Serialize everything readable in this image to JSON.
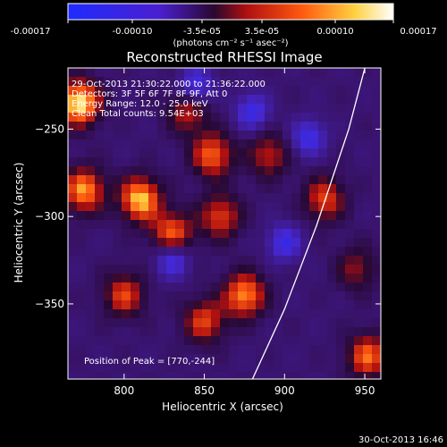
{
  "colorbar": {
    "ticks": [
      "-0.00017",
      "-0.00010",
      "-3.5e-05",
      "3.5e-05",
      "0.00010",
      "0.00017"
    ],
    "unit_label": "(photons cm⁻² s⁻¹ asec⁻²)",
    "colors": [
      "#1f2bff",
      "#5a20c8",
      "#2a0830",
      "#b01010",
      "#ff5a10",
      "#ffd040",
      "#ffffff"
    ]
  },
  "chart_data": {
    "type": "heatmap",
    "title": "Reconstructed RHESSI Image",
    "xlabel": "Heliocentric X (arcsec)",
    "ylabel": "Heliocentric Y (arcsec)",
    "xlim": [
      765,
      960
    ],
    "ylim": [
      -393,
      -215
    ],
    "x_ticks": [
      800,
      850,
      900,
      950
    ],
    "y_ticks": [
      -250,
      -300,
      -350
    ],
    "x_tick_labels": [
      "800",
      "850",
      "900",
      "950"
    ],
    "y_tick_labels": [
      "-250",
      "-300",
      "-350"
    ],
    "info_lines": [
      "29-Oct-2013 21:30:22.000 to 21:36:22.000",
      "Detectors: 3F 5F 6F 7F 8F 9F, Att 0",
      "Energy Range: 12.0 - 25.0 keV",
      "Clean    Total counts: 9.54E+03"
    ],
    "peak_label": "Position of Peak = [770,-244]",
    "peak": [
      770,
      -244
    ],
    "limb_points": [
      [
        880,
        -393
      ],
      [
        900,
        -353
      ],
      [
        920,
        -305
      ],
      [
        940,
        -250
      ],
      [
        950,
        -215
      ]
    ],
    "hot_spots": [
      {
        "x": 772,
        "y": -235,
        "level": 1.0
      },
      {
        "x": 775,
        "y": -285,
        "level": 0.8
      },
      {
        "x": 810,
        "y": -290,
        "level": 0.9
      },
      {
        "x": 800,
        "y": -345,
        "level": 0.6
      },
      {
        "x": 830,
        "y": -310,
        "level": 0.7
      },
      {
        "x": 840,
        "y": -240,
        "level": 0.5
      },
      {
        "x": 855,
        "y": -265,
        "level": 0.7
      },
      {
        "x": 860,
        "y": -300,
        "level": 0.6
      },
      {
        "x": 875,
        "y": -345,
        "level": 0.8
      },
      {
        "x": 850,
        "y": -360,
        "level": 0.6
      },
      {
        "x": 890,
        "y": -265,
        "level": 0.5
      },
      {
        "x": 925,
        "y": -290,
        "level": 0.6
      },
      {
        "x": 945,
        "y": -330,
        "level": 0.4
      },
      {
        "x": 952,
        "y": -380,
        "level": 0.7
      }
    ],
    "cold_spots": [
      {
        "x": 845,
        "y": -225
      },
      {
        "x": 880,
        "y": -240
      },
      {
        "x": 915,
        "y": -255
      },
      {
        "x": 900,
        "y": -315
      },
      {
        "x": 830,
        "y": -325
      }
    ]
  },
  "footer": {
    "timestamp": "30-Oct-2013 16:46"
  }
}
